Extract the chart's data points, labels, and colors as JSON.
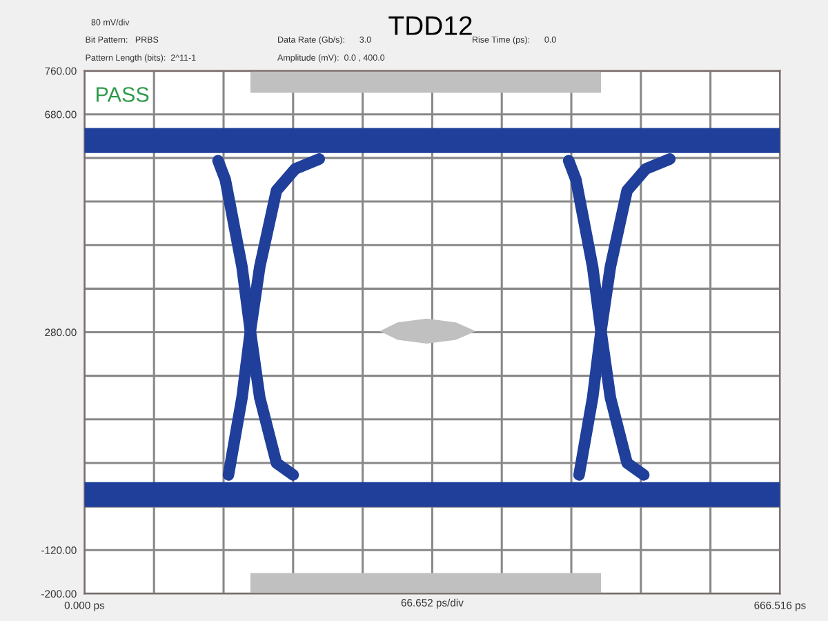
{
  "chart_data": {
    "type": "line",
    "title": "TDD12",
    "xlabel": "66.652 ps/div",
    "annotations": [
      "80 mV/div",
      "Bit Pattern:   PRBS",
      "Pattern Length (bits):  2^11-1",
      "Data Rate (Gb/s):      3.0",
      "Amplitude (mV):  0.0 , 400.0",
      "Rise Time (ps):      0.0",
      "PASS"
    ],
    "series": [
      {
        "color": "#1f3f9a",
        "x": [
          0,
          666.516
        ],
        "values": [
          632,
          632
        ]
      },
      {
        "color": "#1f3f9a",
        "x": [
          0,
          666.516
        ],
        "values": [
          -18,
          -18
        ]
      },
      {
        "color": "#1f3f9a",
        "x": [
          128,
          135,
          151,
          159,
          168,
          184,
          200
        ],
        "values": [
          595,
          560,
          400,
          282,
          160,
          40,
          18
        ]
      },
      {
        "color": "#1f3f9a",
        "x": [
          138,
          151,
          159,
          168,
          184,
          202,
          225
        ],
        "values": [
          18,
          160,
          282,
          400,
          540,
          580,
          598
        ]
      },
      {
        "color": "#1f3f9a",
        "x": [
          464,
          471,
          487,
          495,
          504,
          520,
          536
        ],
        "values": [
          595,
          560,
          400,
          282,
          160,
          40,
          18
        ]
      },
      {
        "color": "#1f3f9a",
        "x": [
          474,
          487,
          495,
          504,
          520,
          538,
          561
        ],
        "values": [
          18,
          160,
          282,
          400,
          540,
          580,
          598
        ]
      }
    ],
    "xlim": [
      0,
      666.516
    ],
    "xticks": [
      {
        "value": 0,
        "label": "0.000 ps"
      },
      {
        "value": 66.6516,
        "label": null
      },
      {
        "value": 133.3032,
        "label": null
      },
      {
        "value": 199.9548,
        "label": null
      },
      {
        "value": 266.6064,
        "label": null
      },
      {
        "value": 333.258,
        "label": null
      },
      {
        "value": 399.9096,
        "label": null
      },
      {
        "value": 466.5612,
        "label": null
      },
      {
        "value": 533.2128,
        "label": null
      },
      {
        "value": 599.8644,
        "label": null
      },
      {
        "value": 666.516,
        "label": "666.516 ps"
      }
    ],
    "ylim": [
      -200,
      760
    ],
    "yticks": [
      {
        "value": -200,
        "label": "-200.00"
      },
      {
        "value": -120,
        "label": "-120.00"
      },
      {
        "value": -40,
        "label": null
      },
      {
        "value": 40,
        "label": null
      },
      {
        "value": 120,
        "label": null
      },
      {
        "value": 200,
        "label": null
      },
      {
        "value": 280,
        "label": "280.00"
      },
      {
        "value": 360,
        "label": null
      },
      {
        "value": 440,
        "label": null
      },
      {
        "value": 520,
        "label": null
      },
      {
        "value": 600,
        "label": null
      },
      {
        "value": 680,
        "label": "680.00"
      },
      {
        "value": 760,
        "label": "760.00"
      }
    ],
    "grid": true,
    "marker": "none",
    "line_style": "solid"
  }
}
